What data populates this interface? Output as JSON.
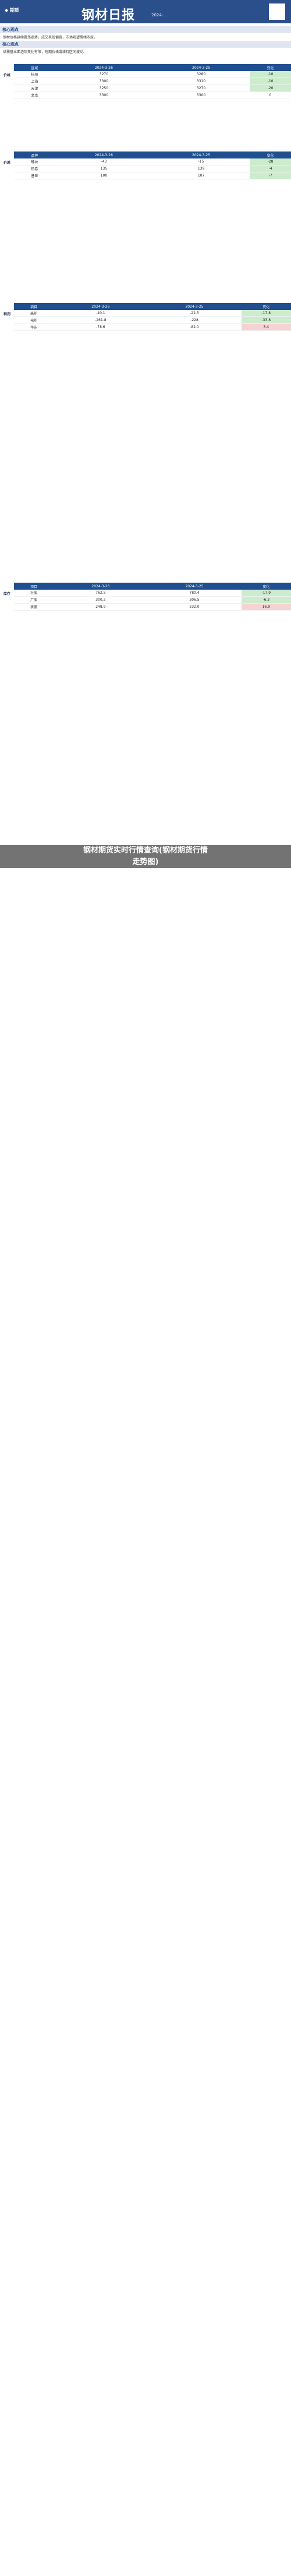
{
  "banner": {
    "brand": "钢材日报",
    "date": "2024-…"
  },
  "overlay": {
    "line1": "钢材期货实时行情查询(钢材期货行情",
    "line2": "走势图)"
  },
  "section1": {
    "header": "核心观点",
    "text": "钢材价格延续震荡走势，成交表现偏弱，市场观望情绪浓厚。"
  },
  "section2": {
    "header": "核心观点",
    "text": "供需基本面边际变化有限，短期价格或维持区间波动。"
  },
  "tables": [
    {
      "name": "价格",
      "cols": [
        "区域",
        "2024-3-26",
        "2024-3-25",
        "变化"
      ],
      "rows": [
        [
          "杭州",
          "3270",
          "3280",
          "-10"
        ],
        [
          "上海",
          "3300",
          "3310",
          "-10"
        ],
        [
          "天津",
          "3250",
          "3270",
          "-20"
        ],
        [
          "北京",
          "3300",
          "3300",
          "0"
        ]
      ]
    },
    {
      "name": "价差",
      "cols": [
        "品种",
        "2024-3-26",
        "2024-3-25",
        "变化"
      ],
      "rows": [
        [
          "螺纹",
          "-43",
          "-15",
          "-28"
        ],
        [
          "热卷",
          "135",
          "139",
          "-4"
        ],
        [
          "基差",
          "100",
          "107",
          "-7"
        ]
      ]
    },
    {
      "name": "利润",
      "cols": [
        "项目",
        "2024-3-26",
        "2024-3-25",
        "变化"
      ],
      "rows": [
        [
          "高炉",
          "-40.1",
          "-22.3",
          "-17.8"
        ],
        [
          "电炉",
          "-261.8",
          "-228",
          "-33.8"
        ],
        [
          "华东",
          "-78.6",
          "-82.0",
          "3.4"
        ]
      ]
    },
    {
      "name": "库存",
      "cols": [
        "项目",
        "2024-3-26",
        "2024-3-25",
        "变化"
      ],
      "rows": [
        [
          "社库",
          "762.5",
          "780.4",
          "-17.9"
        ],
        [
          "厂库",
          "300.2",
          "306.5",
          "-6.3"
        ],
        [
          "表需",
          "248.9",
          "232.0",
          "16.9"
        ]
      ]
    }
  ]
}
